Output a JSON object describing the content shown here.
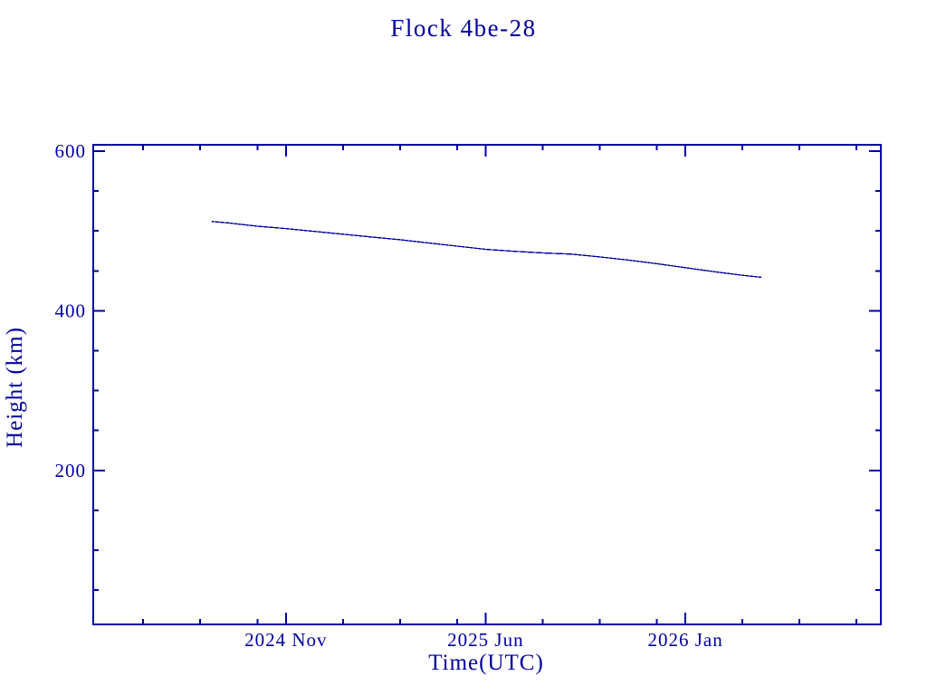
{
  "title": "Flock 4be-28",
  "colors": {
    "ink": "#0000A0",
    "background": "#ffffff"
  },
  "chart_data": {
    "type": "line",
    "title": "Flock 4be-28",
    "xlabel": "Time(UTC)",
    "ylabel": "Height (km)",
    "x_unit": "months since 2024-04-01",
    "xlim": [
      0.25,
      27.85
    ],
    "ylim": [
      7,
      608
    ],
    "grid": false,
    "legend": null,
    "x_major_ticks": [
      {
        "t": 7,
        "label": "2024 Nov"
      },
      {
        "t": 14,
        "label": "2025 Jun"
      },
      {
        "t": 21,
        "label": "2026 Jan"
      }
    ],
    "x_minor_ticks": [
      2,
      4,
      6,
      9,
      11,
      13,
      16,
      18,
      20,
      23,
      25,
      27
    ],
    "y_major_ticks": [
      {
        "v": 200,
        "label": "200"
      },
      {
        "v": 400,
        "label": "400"
      },
      {
        "v": 600,
        "label": "600"
      }
    ],
    "y_minor_ticks": [
      50,
      100,
      150,
      250,
      300,
      350,
      450,
      500,
      550
    ],
    "series": [
      {
        "name": "Flock 4be-28 orbital height",
        "color": "#0000A0",
        "points": [
          [
            4.4,
            512
          ],
          [
            5,
            510
          ],
          [
            6,
            506
          ],
          [
            7,
            503
          ],
          [
            8,
            499.5
          ],
          [
            9,
            496
          ],
          [
            10,
            492.5
          ],
          [
            11,
            489
          ],
          [
            12,
            485
          ],
          [
            13,
            481
          ],
          [
            14,
            477
          ],
          [
            15,
            474.5
          ],
          [
            16,
            472.5
          ],
          [
            17,
            471
          ],
          [
            18,
            467.5
          ],
          [
            19,
            463.5
          ],
          [
            20,
            459
          ],
          [
            21,
            454
          ],
          [
            22,
            449
          ],
          [
            23,
            444.5
          ],
          [
            23.66,
            442
          ]
        ]
      }
    ]
  }
}
